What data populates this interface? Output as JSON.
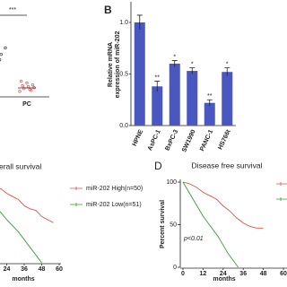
{
  "chart_data": [
    {
      "type": "strip",
      "annotation": "***",
      "categories": [
        null,
        "PC"
      ],
      "series": [
        {
          "color": "#333333",
          "values": [
            4.2,
            4.6,
            5.0,
            5.3,
            4.0
          ]
        },
        {
          "color": "#d9534f",
          "values": [
            0.6,
            0.8,
            0.9,
            1.0,
            1.1,
            1.2,
            1.3,
            1.5,
            1.7,
            0.7
          ]
        }
      ],
      "ylim": [
        0,
        10
      ]
    },
    {
      "type": "bar",
      "panel": "B",
      "ylabel": [
        "Relative mRNA",
        "expression of miR-202"
      ],
      "categories": [
        "HPNE",
        "AsPC-1",
        "BxPC-3",
        "SW1990",
        "PANC-1",
        "HS766t"
      ],
      "values": [
        1.0,
        0.38,
        0.6,
        0.53,
        0.22,
        0.52
      ],
      "errors": [
        0.07,
        0.05,
        0.03,
        0.03,
        0.03,
        0.04
      ],
      "annotations": [
        null,
        "**",
        "*",
        "*",
        "**",
        "*"
      ],
      "color": "#4a57c0",
      "ylim": [
        0,
        1.2
      ],
      "yticks": [
        {
          "value": 0,
          "label": "0.0"
        },
        {
          "value": 0.5,
          "label": "0.5"
        },
        {
          "value": 1,
          "label": "1.0"
        }
      ]
    },
    {
      "type": "line",
      "title": "erall survival",
      "xlabel": "months",
      "series": [
        {
          "name": "miR-202 High(n=50)",
          "color": "#d9534f",
          "x": [
            0,
            12,
            20,
            24,
            28,
            32,
            36,
            40,
            44,
            48,
            52,
            56
          ],
          "values": [
            100,
            98,
            96,
            90,
            86,
            82,
            74,
            70,
            68,
            60,
            56,
            52
          ]
        },
        {
          "name": "miR-202 Low(n=51)",
          "color": "#3a9a3a",
          "x": [
            0,
            8,
            14,
            20,
            24,
            28,
            32,
            36,
            40,
            44,
            46,
            48
          ],
          "values": [
            100,
            90,
            78,
            65,
            56,
            48,
            40,
            30,
            20,
            10,
            5,
            0
          ]
        }
      ],
      "xlim": [
        0,
        60
      ],
      "xticks": [
        24,
        36,
        48,
        60
      ],
      "ylim": [
        0,
        100
      ]
    },
    {
      "type": "line",
      "panel": "D",
      "title": "Disease free survival",
      "xlabel": "months",
      "ylabel": "Percent survival",
      "annotation": "p<0.01",
      "series": [
        {
          "color": "#d9534f",
          "x": [
            0,
            4,
            8,
            12,
            16,
            20,
            24,
            28,
            32,
            36,
            40,
            44,
            48
          ],
          "values": [
            100,
            98,
            94,
            88,
            84,
            80,
            72,
            66,
            58,
            52,
            48,
            46,
            46
          ]
        },
        {
          "color": "#3a9a3a",
          "x": [
            0,
            3,
            6,
            9,
            12,
            15,
            18,
            21,
            24,
            27,
            30,
            33
          ],
          "values": [
            100,
            90,
            80,
            70,
            60,
            52,
            44,
            36,
            26,
            16,
            8,
            0
          ]
        }
      ],
      "xlim": [
        0,
        60
      ],
      "xticks": [
        0,
        12,
        24,
        36,
        48,
        60
      ],
      "ylim": [
        0,
        100
      ],
      "yticks": [
        0,
        50,
        100
      ]
    }
  ]
}
